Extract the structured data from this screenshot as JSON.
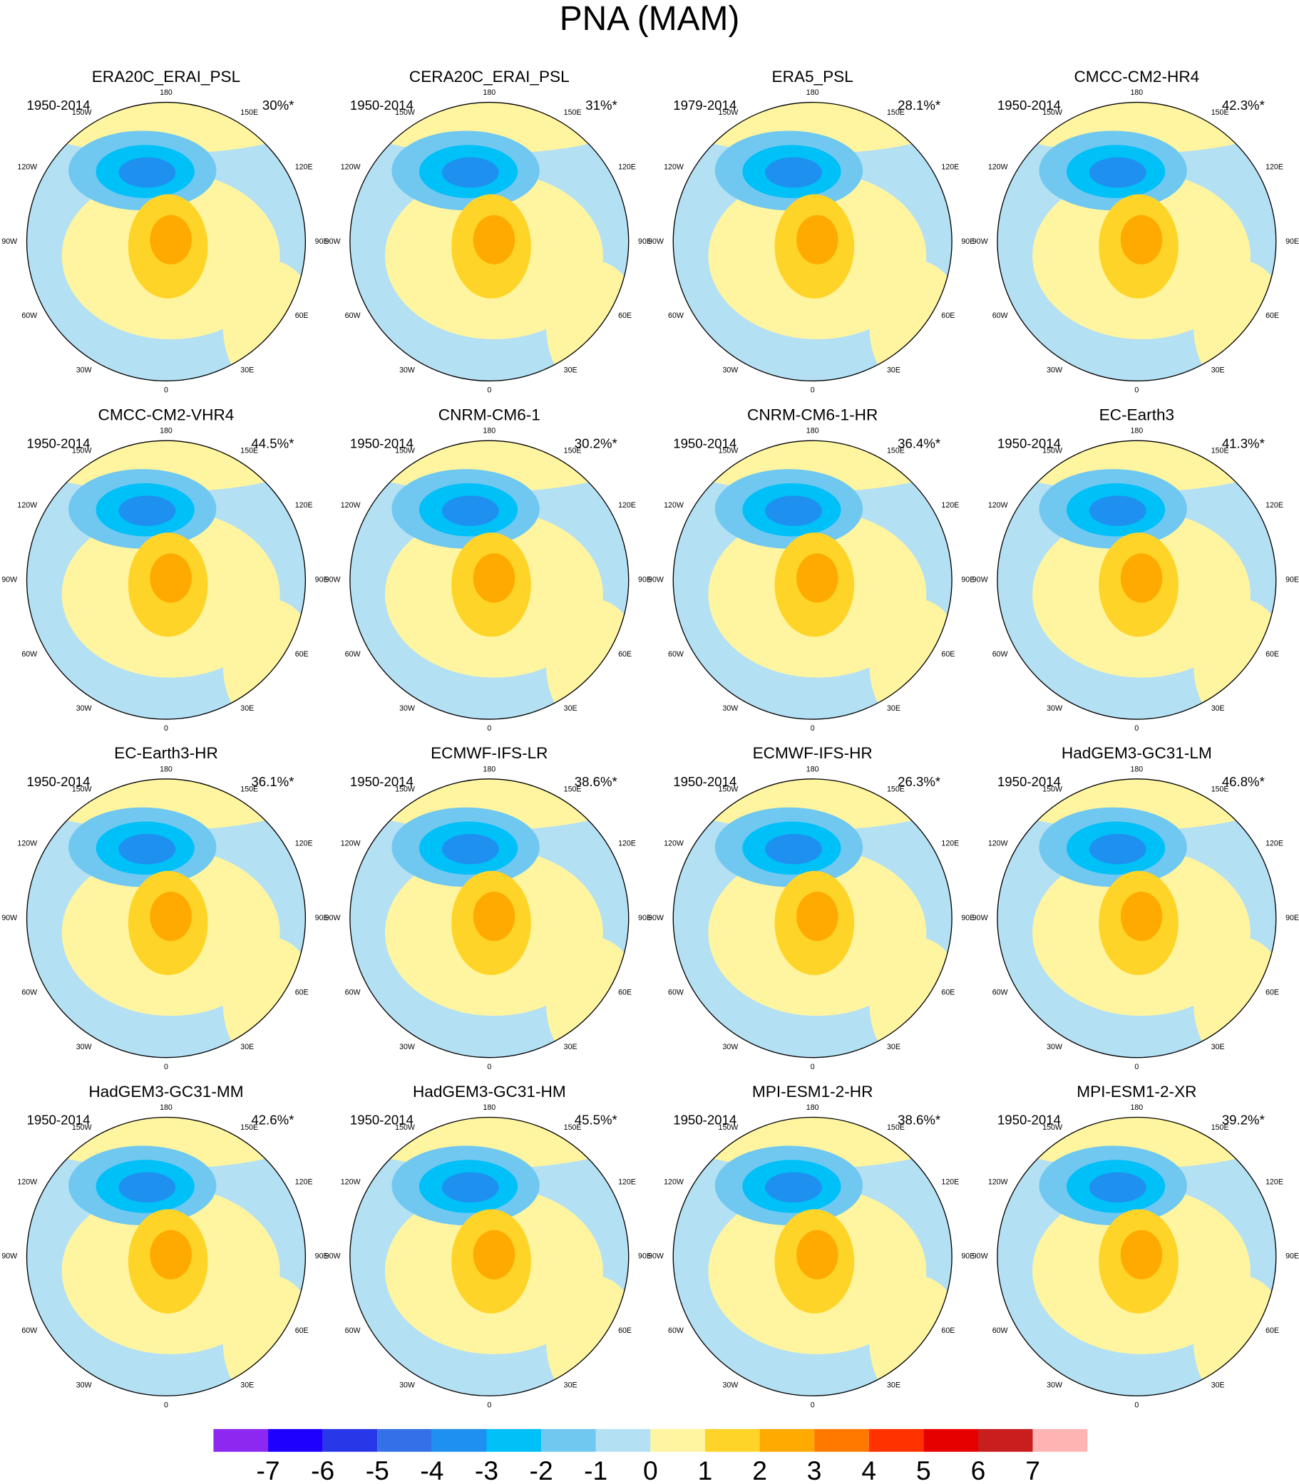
{
  "title": "PNA (MAM)",
  "panels": [
    {
      "title": "ERA20C_ERAI_PSL",
      "period": "1950-2014",
      "variance": "30%*"
    },
    {
      "title": "CERA20C_ERAI_PSL",
      "period": "1950-2014",
      "variance": "31%*"
    },
    {
      "title": "ERA5_PSL",
      "period": "1979-2014",
      "variance": "28.1%*"
    },
    {
      "title": "CMCC-CM2-HR4",
      "period": "1950-2014",
      "variance": "42.3%*"
    },
    {
      "title": "CMCC-CM2-VHR4",
      "period": "1950-2014",
      "variance": "44.5%*"
    },
    {
      "title": "CNRM-CM6-1",
      "period": "1950-2014",
      "variance": "30.2%*"
    },
    {
      "title": "CNRM-CM6-1-HR",
      "period": "1950-2014",
      "variance": "36.4%*"
    },
    {
      "title": "EC-Earth3",
      "period": "1950-2014",
      "variance": "41.3%*"
    },
    {
      "title": "EC-Earth3-HR",
      "period": "1950-2014",
      "variance": "36.1%*"
    },
    {
      "title": "ECMWF-IFS-LR",
      "period": "1950-2014",
      "variance": "38.6%*"
    },
    {
      "title": "ECMWF-IFS-HR",
      "period": "1950-2014",
      "variance": "26.3%*"
    },
    {
      "title": "HadGEM3-GC31-LM",
      "period": "1950-2014",
      "variance": "46.8%*"
    },
    {
      "title": "HadGEM3-GC31-MM",
      "period": "1950-2014",
      "variance": "42.6%*"
    },
    {
      "title": "HadGEM3-GC31-HM",
      "period": "1950-2014",
      "variance": "45.5%*"
    },
    {
      "title": "MPI-ESM1-2-HR",
      "period": "1950-2014",
      "variance": "38.6%*"
    },
    {
      "title": "MPI-ESM1-2-XR",
      "period": "1950-2014",
      "variance": "39.2%*"
    }
  ],
  "lon_labels": [
    "180",
    "150E",
    "120E",
    "90E",
    "60E",
    "30E",
    "0",
    "30W",
    "60W",
    "90W",
    "120W",
    "150W"
  ],
  "colorbar": {
    "ticks": [
      -7,
      -6,
      -5,
      -4,
      -3,
      -2,
      -1,
      0,
      1,
      2,
      3,
      4,
      5,
      6,
      7
    ],
    "colors": [
      "#8c28f0",
      "#1e00ff",
      "#2838e8",
      "#3470e8",
      "#1e90f0",
      "#00c0f8",
      "#70c8f0",
      "#b4e0f4",
      "#fff5a0",
      "#ffd428",
      "#ffaa00",
      "#ff7800",
      "#ff3200",
      "#e60000",
      "#c81e1e",
      "#ffb4b4"
    ]
  }
}
